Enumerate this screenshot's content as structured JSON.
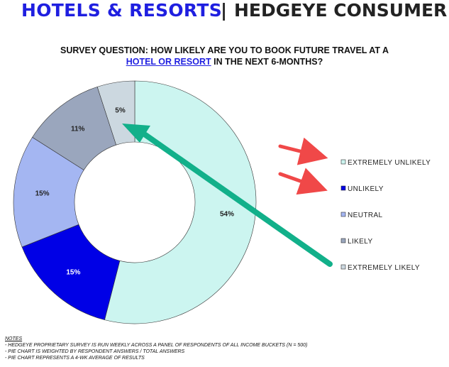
{
  "header": {
    "left": "HOTELS & RESORTS",
    "separator": "|",
    "right": "HEDGEYE CONSUMER"
  },
  "question": {
    "prefix": "SURVEY QUESTION: HOW LIKELY ARE YOU TO BOOK FUTURE TRAVEL AT A",
    "link": "HOTEL OR RESORT",
    "suffix": " IN THE NEXT 6-MONTHS?"
  },
  "chart_data": {
    "type": "pie",
    "categories": [
      "EXTREMELY UNLIKELY",
      "UNLIKELY",
      "NEUTRAL",
      "LIKELY",
      "EXTREMELY LIKELY"
    ],
    "values": [
      54,
      15,
      15,
      11,
      5
    ],
    "labels": [
      "54%",
      "15%",
      "15%",
      "11%",
      "5%"
    ],
    "colors": [
      "#ccf5f0",
      "#0000e6",
      "#a4b6f2",
      "#9aa6bd",
      "#ccd8e0"
    ],
    "donut": true,
    "legend_position": "right"
  },
  "notes": {
    "title": "NOTES",
    "lines": [
      "- HEDGEYE PROPRIETARY SURVEY IS RUN WEEKLY ACROSS A PANEL OF RESPONDENTS OF ALL INCOME BUCKETS (N = 500)",
      "- PIE CHART IS WEIGHTED BY RESPONDENT ANSWERS / TOTAL ANSWERS",
      "- PIE CHART REPRESENTS A 4-WK AVERAGE OF RESULTS"
    ]
  },
  "colors": {
    "header_blue": "#1f1fe0",
    "arrow_red": "#f04848",
    "arrow_green": "#12b08a"
  }
}
